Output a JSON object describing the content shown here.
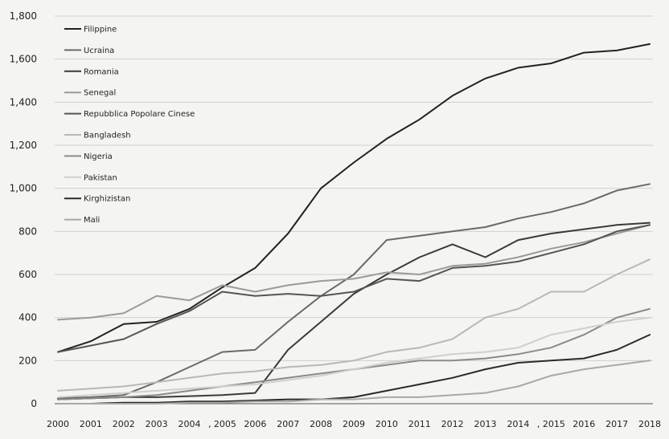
{
  "chart_data": {
    "type": "line",
    "title": "",
    "xlabel": "",
    "ylabel": "",
    "x": [
      "2000",
      "2001",
      "2002",
      "2003",
      "2004",
      "2005",
      "2006",
      "2007",
      "2008",
      "2009",
      "2010",
      "2011",
      "2012",
      "2013",
      "2014",
      "2015",
      "2016",
      "2017",
      "2018"
    ],
    "x_tick_labels": [
      "2000",
      "2001",
      "2002",
      "2003",
      "2004",
      ", 2005",
      "2006",
      "2007",
      "2008",
      "2009",
      "2010",
      "2011",
      "2012",
      "2013",
      "2014",
      ", 2015",
      "2016",
      "2017",
      "2018"
    ],
    "ylim": [
      0,
      1800
    ],
    "y_ticks": [
      0,
      200,
      400,
      600,
      800,
      1000,
      1200,
      1400,
      1600,
      1800
    ],
    "y_tick_labels": [
      "0",
      "200",
      "400",
      "600",
      "800",
      "1,000",
      "1,200",
      "1,400",
      "1,600",
      "1,800"
    ],
    "grid": true,
    "legend_position": "top-left",
    "series": [
      {
        "name": "Filippine",
        "color": "#222222",
        "values": [
          240,
          290,
          370,
          380,
          440,
          540,
          630,
          790,
          1000,
          1120,
          1230,
          1320,
          1430,
          1510,
          1560,
          1580,
          1630,
          1640,
          1670
        ]
      },
      {
        "name": "Ucraina",
        "color": "#6a6a6a",
        "values": [
          25,
          30,
          40,
          100,
          170,
          240,
          250,
          380,
          500,
          600,
          760,
          780,
          800,
          820,
          860,
          890,
          930,
          990,
          1020
        ]
      },
      {
        "name": "Romania",
        "color": "#3a3a3a",
        "values": [
          20,
          25,
          30,
          30,
          35,
          40,
          50,
          250,
          380,
          510,
          600,
          680,
          740,
          680,
          760,
          790,
          810,
          830,
          840
        ]
      },
      {
        "name": "Senegal",
        "color": "#9a9a9a",
        "values": [
          390,
          400,
          420,
          500,
          480,
          550,
          520,
          550,
          570,
          580,
          610,
          600,
          640,
          650,
          680,
          720,
          750,
          790,
          830
        ]
      },
      {
        "name": "Repubblica Popolare Cinese",
        "color": "#555555",
        "values": [
          240,
          270,
          300,
          370,
          430,
          520,
          500,
          510,
          500,
          520,
          580,
          570,
          630,
          640,
          660,
          700,
          740,
          800,
          830
        ]
      },
      {
        "name": "Bangladesh",
        "color": "#b8b8b8",
        "values": [
          60,
          70,
          80,
          100,
          120,
          140,
          150,
          170,
          180,
          200,
          240,
          260,
          300,
          400,
          440,
          520,
          520,
          600,
          670
        ]
      },
      {
        "name": "Nigeria",
        "color": "#8a8a8a",
        "values": [
          20,
          25,
          30,
          40,
          60,
          80,
          100,
          120,
          140,
          160,
          180,
          200,
          200,
          210,
          230,
          260,
          320,
          400,
          440
        ]
      },
      {
        "name": "Pakistan",
        "color": "#cfcfcf",
        "values": [
          30,
          40,
          50,
          60,
          70,
          80,
          90,
          110,
          130,
          160,
          190,
          210,
          230,
          240,
          260,
          320,
          350,
          380,
          400
        ]
      },
      {
        "name": "Kirghizistan",
        "color": "#2a2a2a",
        "values": [
          0,
          0,
          5,
          5,
          10,
          10,
          15,
          20,
          20,
          30,
          60,
          90,
          120,
          160,
          190,
          200,
          210,
          250,
          320
        ]
      },
      {
        "name": "Mali",
        "color": "#a8a8a8",
        "values": [
          0,
          0,
          0,
          0,
          5,
          5,
          10,
          10,
          20,
          20,
          30,
          30,
          40,
          50,
          80,
          130,
          160,
          180,
          200
        ]
      }
    ]
  }
}
